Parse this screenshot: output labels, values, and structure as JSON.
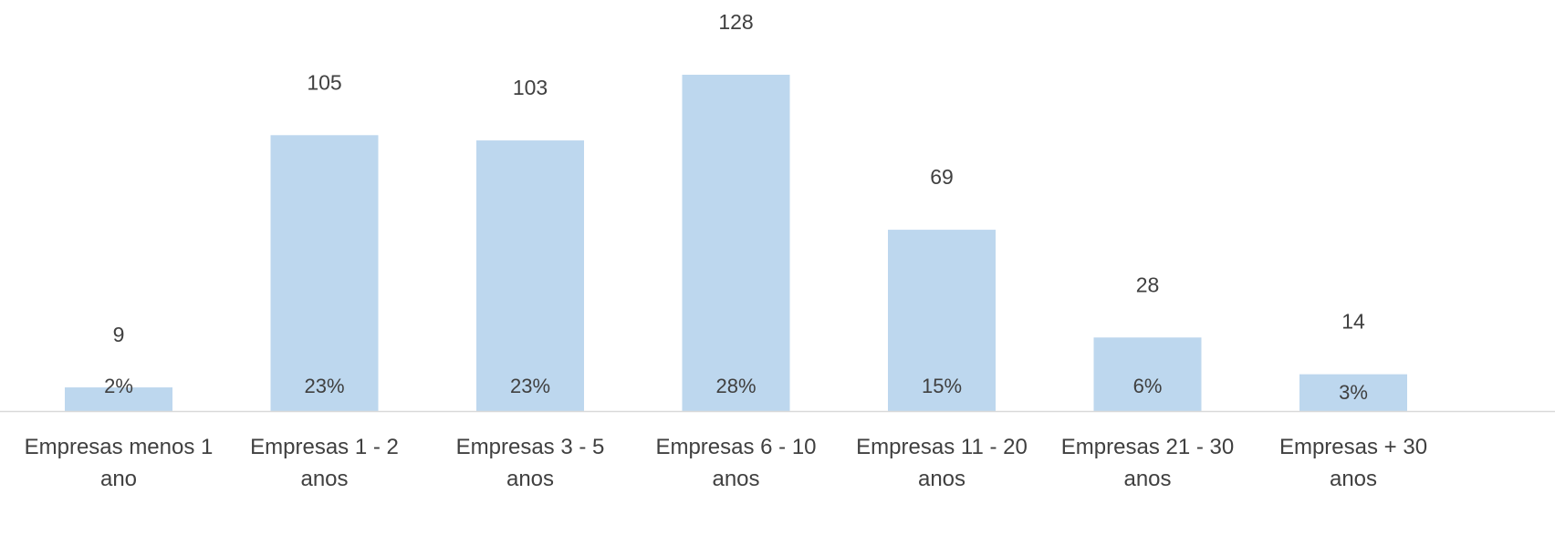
{
  "chart_data": {
    "type": "bar",
    "categories": [
      [
        "Empresas menos 1",
        "ano"
      ],
      [
        "Empresas 1 - 2",
        "anos"
      ],
      [
        "Empresas 3 - 5",
        "anos"
      ],
      [
        "Empresas 6 - 10",
        "anos"
      ],
      [
        "Empresas 11 - 20",
        "anos"
      ],
      [
        "Empresas 21 - 30",
        "anos"
      ],
      [
        "Empresas + 30",
        "anos"
      ]
    ],
    "values": [
      9,
      105,
      103,
      128,
      69,
      28,
      14
    ],
    "percent_labels": [
      "2%",
      "23%",
      "23%",
      "28%",
      "15%",
      "6%",
      "3%"
    ],
    "ylim": [
      0,
      128
    ],
    "grid": false,
    "legend": "none",
    "colors": {
      "bar": "#bdd7ee",
      "axis": "#d9d9d9",
      "text": "#404040"
    }
  }
}
